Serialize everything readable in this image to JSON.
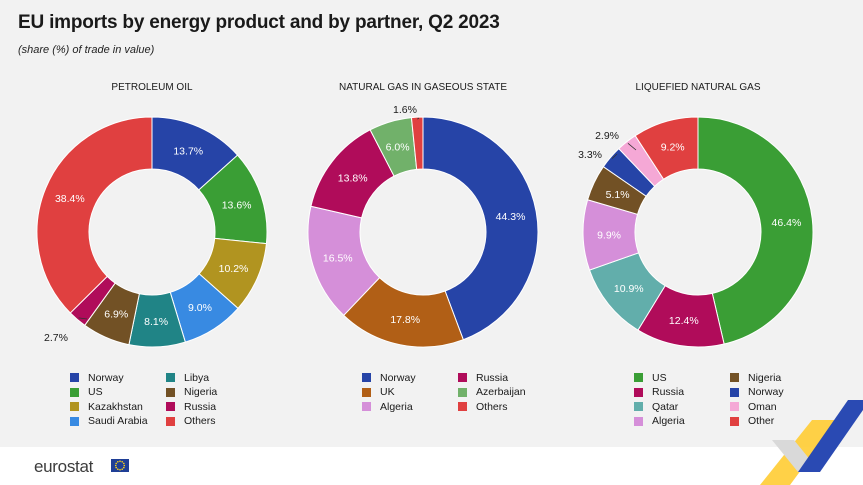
{
  "header": {
    "title": "EU imports by energy product and by partner, Q2 2023",
    "subtitle": "(share (%) of trade in value)"
  },
  "logo": {
    "text": "eurostat"
  },
  "chart_data": [
    {
      "type": "pie",
      "title": "PETROLEUM OIL",
      "series": [
        {
          "name": "Norway",
          "value": 13.7,
          "label": "13.7%",
          "color": "#2644a7"
        },
        {
          "name": "US",
          "value": 13.6,
          "label": "13.6%",
          "color": "#3a9e35"
        },
        {
          "name": "Kazakhstan",
          "value": 10.2,
          "label": "10.2%",
          "color": "#b19420"
        },
        {
          "name": "Saudi Arabia",
          "value": 9.0,
          "label": "9.0%",
          "color": "#388ae2"
        },
        {
          "name": "Libya",
          "value": 8.1,
          "label": "8.1%",
          "color": "#208486"
        },
        {
          "name": "Nigeria",
          "value": 6.9,
          "label": "6.9%",
          "color": "#725125"
        },
        {
          "name": "Russia",
          "value": 2.7,
          "label": "2.7%",
          "color": "#b00c5a"
        },
        {
          "name": "Others",
          "value": 38.4,
          "label": "38.4%",
          "color": "#e04040"
        }
      ],
      "legend": [
        "Norway",
        "Libya",
        "US",
        "Nigeria",
        "Kazakhstan",
        "Russia",
        "Saudi Arabia",
        "Others"
      ]
    },
    {
      "type": "pie",
      "title": "NATURAL GAS IN GASEOUS STATE",
      "series": [
        {
          "name": "Norway",
          "value": 44.3,
          "label": "44.3%",
          "color": "#2644a7"
        },
        {
          "name": "UK",
          "value": 17.8,
          "label": "17.8%",
          "color": "#b15f16"
        },
        {
          "name": "Algeria",
          "value": 16.5,
          "label": "16.5%",
          "color": "#d58fd9"
        },
        {
          "name": "Russia",
          "value": 13.8,
          "label": "13.8%",
          "color": "#b00c5a"
        },
        {
          "name": "Azerbaijan",
          "value": 6.0,
          "label": "6.0%",
          "color": "#71b16a"
        },
        {
          "name": "Others",
          "value": 1.6,
          "label": "1.6%",
          "color": "#e04040"
        }
      ],
      "legend": [
        "Norway",
        "Russia",
        "UK",
        "Azerbaijan",
        "Algeria",
        "Others"
      ]
    },
    {
      "type": "pie",
      "title": "LIQUEFIED NATURAL GAS",
      "series": [
        {
          "name": "US",
          "value": 46.4,
          "label": "46.4%",
          "color": "#3a9e35"
        },
        {
          "name": "Russia",
          "value": 12.4,
          "label": "12.4%",
          "color": "#b00c5a"
        },
        {
          "name": "Qatar",
          "value": 10.9,
          "label": "10.9%",
          "color": "#62aeab"
        },
        {
          "name": "Algeria",
          "value": 9.9,
          "label": "9.9%",
          "color": "#d58fd9"
        },
        {
          "name": "Nigeria",
          "value": 5.1,
          "label": "5.1%",
          "color": "#725125"
        },
        {
          "name": "Norway",
          "value": 3.3,
          "label": "3.3%",
          "color": "#2644a7"
        },
        {
          "name": "Oman",
          "value": 2.9,
          "label": "2.9%",
          "color": "#f5a8d6"
        },
        {
          "name": "Others",
          "value": 9.2,
          "label": "9.2%",
          "color": "#e04040"
        }
      ],
      "legend": [
        "US",
        "Nigeria",
        "Russia",
        "Norway",
        "Qatar",
        "Oman",
        "Algeria",
        "Other"
      ]
    }
  ]
}
